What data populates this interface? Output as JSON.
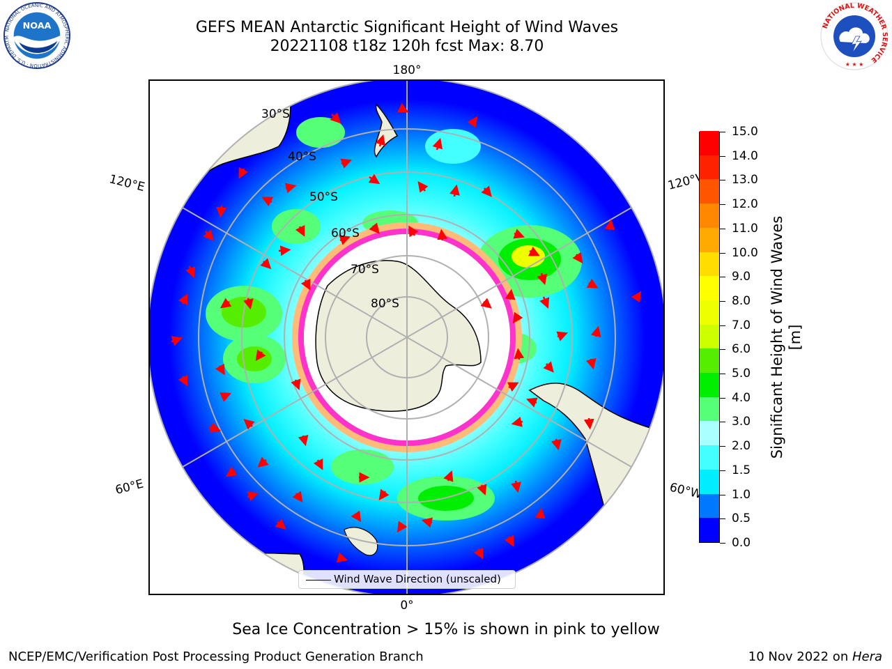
{
  "header": {
    "title_line1": "GEFS MEAN Antarctic Significant Height of Wind Waves",
    "title_line2": "20221108 t18z 120h fcst   Max: 8.70"
  },
  "logos": {
    "left": {
      "name": "noaa-logo",
      "text": "NOAA",
      "ring_text": "NATIONAL OCEANIC AND ATMOSPHERIC ADMINISTRATION · U.S. DEPARTMENT OF COMMERCE"
    },
    "right": {
      "name": "nws-logo",
      "ring_text": "NATIONAL WEATHER SERVICE"
    }
  },
  "map": {
    "projection": "south-polar-stereographic",
    "longitude_labels": {
      "top": "180°",
      "bottom": "0°",
      "upper_left": "120°E",
      "lower_left": "60°E",
      "upper_right": "120°W",
      "lower_right": "60°W"
    },
    "latitude_labels": [
      "30°S",
      "40°S",
      "50°S",
      "60°S",
      "70°S",
      "80°S"
    ],
    "legend_label": "Wind Wave Direction (unscaled)",
    "colors": {
      "land": "#eeeedd",
      "ocean_low": "#0000ff",
      "grid": "#b0b0b0",
      "arrow": "#ff0000",
      "ice_edge": "#ff33cc"
    }
  },
  "colorbar": {
    "title": "Significant Height of Wind Waves [m]",
    "ticks": [
      "0.0",
      "0.5",
      "1.0",
      "1.5",
      "2.0",
      "3.0",
      "4.0",
      "5.0",
      "6.0",
      "7.0",
      "8.0",
      "9.0",
      "10.0",
      "11.0",
      "12.0",
      "13.0",
      "14.0",
      "15.0"
    ],
    "colors": [
      "#0000ff",
      "#0078ff",
      "#00eeff",
      "#44ffff",
      "#aaffff",
      "#55ff77",
      "#00ee00",
      "#55ee00",
      "#ccff00",
      "#eeff00",
      "#ffff00",
      "#ffdd00",
      "#ffaa00",
      "#ff8800",
      "#ff5500",
      "#ff2200",
      "#ff0000"
    ]
  },
  "footer": {
    "note": "Sea Ice Concentration > 15% is shown in pink to yellow",
    "credit": "NCEP/EMC/Verification Post Processing Product Generation Branch",
    "date_prefix": "10 Nov 2022 on ",
    "date_machine": "Hera"
  }
}
